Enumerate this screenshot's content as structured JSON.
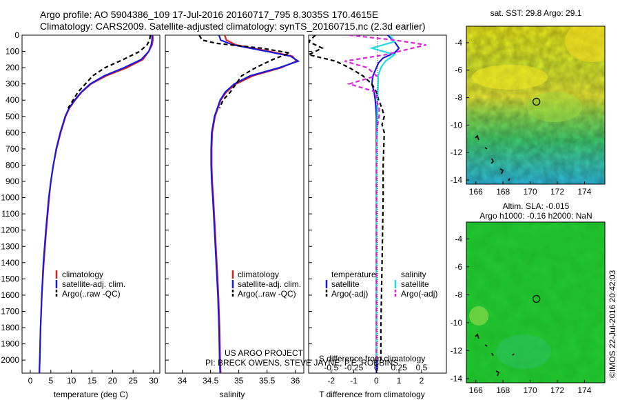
{
  "header": {
    "line1": "Argo profile: AO 5904386_109 17-Jul-2016 20160717_795 8.3035S 170.4615E",
    "line2": "Climatology: CARS2009. Satellite-adjusted climatology: synTS_20160715.nc (2.3d earlier)"
  },
  "credits": {
    "project": "US ARGO PROJECT",
    "pi": "PI: BRECK OWENS, STEVE JAYNE, P.E. ROBBINS",
    "imos": "©IMOS 22-Jul-2016 20:42:03"
  },
  "colors": {
    "climatology": "#e0201c",
    "satellite": "#1a1adc",
    "argo": "#000000",
    "sal_satellite": "#22dede",
    "sal_argo": "#dd22dd"
  },
  "chart_data": [
    {
      "type": "line",
      "xlabel": "temperature (deg C)",
      "ylim": [
        2080,
        0
      ],
      "yticks": [
        0,
        100,
        200,
        300,
        400,
        500,
        600,
        700,
        800,
        900,
        1000,
        1100,
        1200,
        1300,
        1400,
        1500,
        1600,
        1700,
        1800,
        1900,
        2000
      ],
      "xlim": [
        -2,
        31.5
      ],
      "xticks": [
        0,
        5,
        10,
        15,
        20,
        25,
        30
      ],
      "legend": [
        "climatology",
        "satellite-adj. clim.",
        "Argo(..raw -QC)"
      ],
      "series": [
        {
          "name": "climatology",
          "color": "#e0201c",
          "dash": "",
          "y": [
            0,
            30,
            60,
            100,
            150,
            200,
            250,
            300,
            350,
            400,
            450,
            500,
            600,
            700,
            800,
            900,
            1000,
            1200,
            1400,
            1600,
            1800,
            2000,
            2080
          ],
          "x": [
            29.8,
            29.8,
            29.6,
            28.8,
            27.4,
            23.5,
            18.5,
            14.8,
            12.5,
            10.9,
            9.5,
            8.6,
            7.4,
            6.4,
            5.6,
            5.0,
            4.6,
            3.9,
            3.3,
            2.8,
            2.5,
            2.3,
            2.2
          ]
        },
        {
          "name": "satellite-adj. clim.",
          "color": "#1a1adc",
          "dash": "",
          "y": [
            0,
            30,
            60,
            100,
            150,
            200,
            250,
            300,
            350,
            400,
            450,
            500,
            600,
            700,
            800,
            900,
            1000,
            1200,
            1400,
            1600,
            1800,
            2000,
            2080
          ],
          "x": [
            29.6,
            29.6,
            29.4,
            28.8,
            27.0,
            22.8,
            18.0,
            14.6,
            12.4,
            10.8,
            9.4,
            8.5,
            7.3,
            6.3,
            5.6,
            5.0,
            4.5,
            3.8,
            3.2,
            2.8,
            2.5,
            2.3,
            2.2
          ]
        },
        {
          "name": "Argo(..raw -QC)",
          "color": "#000000",
          "dash": "6,4",
          "y": [
            0,
            30,
            60,
            100,
            150,
            200,
            250,
            300,
            350,
            400,
            450
          ],
          "x": [
            29.2,
            29.0,
            28.4,
            26.6,
            22.6,
            18.2,
            15.2,
            13.4,
            11.6,
            10.4,
            9.2
          ]
        }
      ]
    },
    {
      "type": "line",
      "xlabel": "salinity",
      "ylim": [
        2080,
        0
      ],
      "xlim": [
        33.7,
        36.15
      ],
      "xticks": [
        34,
        34.5,
        35,
        35.5,
        36
      ],
      "legend": [
        "climatology",
        "satellite-adj. clim.",
        "Argo(..raw -QC)"
      ],
      "series": [
        {
          "name": "climatology",
          "color": "#e0201c",
          "dash": "",
          "y": [
            0,
            30,
            60,
            100,
            130,
            160,
            200,
            250,
            300,
            350,
            400,
            500,
            600,
            700,
            800,
            900,
            1000,
            1200,
            1400,
            1600,
            1800,
            2000,
            2080
          ],
          "x": [
            34.75,
            34.78,
            34.95,
            35.55,
            35.95,
            36.02,
            35.75,
            35.25,
            34.95,
            34.78,
            34.68,
            34.58,
            34.53,
            34.52,
            34.52,
            34.53,
            34.55,
            34.58,
            34.61,
            34.64,
            34.66,
            34.67,
            34.68
          ]
        },
        {
          "name": "satellite-adj. clim.",
          "color": "#1a1adc",
          "dash": "",
          "y": [
            0,
            30,
            60,
            100,
            130,
            160,
            200,
            250,
            300,
            350,
            400,
            500,
            600,
            700,
            800,
            900,
            1000,
            1200,
            1400,
            1600,
            1800,
            2000,
            2080
          ],
          "x": [
            34.65,
            34.68,
            34.9,
            35.5,
            35.92,
            36.05,
            35.72,
            35.2,
            34.92,
            34.76,
            34.67,
            34.57,
            34.52,
            34.51,
            34.51,
            34.52,
            34.54,
            34.57,
            34.6,
            34.63,
            34.65,
            34.66,
            34.67
          ]
        },
        {
          "name": "Argo(..raw -QC)",
          "color": "#000000",
          "dash": "6,4",
          "y": [
            0,
            30,
            50,
            80,
            110,
            150,
            200,
            250,
            300,
            350,
            400,
            450
          ],
          "x": [
            34.3,
            34.35,
            34.6,
            35.4,
            35.9,
            35.6,
            35.3,
            35.05,
            34.95,
            34.85,
            34.72,
            34.66
          ]
        }
      ]
    },
    {
      "type": "line",
      "xlabel": "T difference from climatology",
      "top_label": "S difference from climatology",
      "ylim": [
        2080,
        0
      ],
      "xlim": [
        -3,
        3.1
      ],
      "xticks": [
        -2,
        -1,
        0,
        1,
        2
      ],
      "top_ticks": [
        "-0.5",
        "-0.25",
        "0",
        "0.25",
        "0.5"
      ],
      "legend_headers": [
        "temperature",
        "salinity"
      ],
      "legend": [
        "satellite",
        "Argo(-adj)",
        "satellite",
        "Argo(-adj)"
      ],
      "series": [
        {
          "name": "satellite",
          "color": "#1a1adc",
          "dash": "",
          "quantity": "temperature",
          "y": [
            0,
            40,
            80,
            110,
            140,
            170,
            200,
            250,
            300,
            350,
            400,
            450,
            500,
            600,
            800,
            1000,
            1500,
            2000,
            2080
          ],
          "x": [
            0.5,
            0.8,
            1.0,
            0.8,
            0.3,
            0.1,
            0.0,
            -0.15,
            -0.2,
            -0.1,
            -0.05,
            -0.02,
            0.0,
            0.0,
            0.0,
            0.0,
            0.0,
            0.0,
            0.0
          ]
        },
        {
          "name": "Argo(-adj)",
          "color": "#000000",
          "dash": "6,4",
          "quantity": "temperature",
          "y": [
            0,
            40,
            80,
            120,
            160,
            200,
            250,
            300,
            350,
            400,
            450,
            500,
            550,
            600,
            800,
            1000,
            1400,
            1800,
            2000
          ],
          "x": [
            -2.7,
            -3.0,
            -2.4,
            -3.0,
            -1.8,
            -1.2,
            -0.6,
            -0.2,
            0.0,
            0.1,
            0.25,
            0.35,
            0.25,
            0.35,
            0.3,
            0.3,
            0.25,
            0.2,
            0.2
          ]
        },
        {
          "name": "satellite",
          "color": "#22dede",
          "dash": "",
          "quantity": "salinity",
          "y": [
            0,
            40,
            80,
            120,
            160,
            200,
            250,
            300,
            400,
            500,
            800,
            1200,
            1600,
            2000
          ],
          "x": [
            0.15,
            0.2,
            -0.05,
            0.2,
            0.1,
            0.05,
            0.02,
            0.02,
            0.01,
            0.01,
            0.0,
            0.0,
            0.0,
            0.0
          ]
        },
        {
          "name": "Argo(-adj)",
          "color": "#dd22dd",
          "dash": "6,4",
          "quantity": "salinity",
          "y": [
            0,
            30,
            60,
            80,
            120,
            160,
            200,
            250,
            300,
            350,
            400,
            450,
            500,
            600,
            800,
            1000,
            1200,
            1500,
            1800,
            2000
          ],
          "x": [
            -0.3,
            0.2,
            0.55,
            0.4,
            0.1,
            -0.35,
            -0.1,
            0.0,
            -0.3,
            0.0,
            0.0,
            0.03,
            0.03,
            0.0,
            0.0,
            0.0,
            0.0,
            0.0,
            0.0,
            0.0
          ]
        }
      ]
    },
    {
      "type": "heatmap",
      "title": "sat. SST: 29.8 Argo: 29.1",
      "xlim": [
        165.3,
        175.5
      ],
      "ylim": [
        -14.3,
        -2.8
      ],
      "xticks": [
        166,
        168,
        170,
        172,
        174
      ],
      "yticks": [
        -4,
        -6,
        -8,
        -10,
        -12,
        -14
      ],
      "marker": {
        "lon": 170.46,
        "lat": -8.3
      }
    },
    {
      "type": "heatmap",
      "title_line1": "Altim. SLA: -0.015",
      "title_line2": "Argo h1000: -0.16 h2000: NaN",
      "xlim": [
        165.3,
        175.5
      ],
      "ylim": [
        -14.3,
        -2.8
      ],
      "xticks": [
        166,
        168,
        170,
        172,
        174
      ],
      "yticks": [
        -4,
        -6,
        -8,
        -10,
        -12,
        -14
      ],
      "marker": {
        "lon": 170.46,
        "lat": -8.3
      }
    }
  ]
}
